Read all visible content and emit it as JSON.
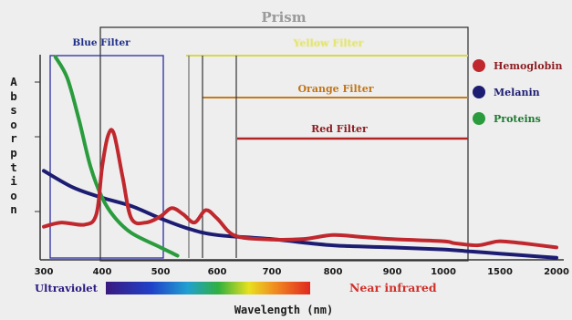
{
  "chart_data": {
    "type": "line",
    "title": "Prism",
    "xlabel": "Wavelength (nm)",
    "ylabel": "Absorption",
    "x_ticks": [
      "300",
      "400",
      "500",
      "600",
      "700",
      "800",
      "900",
      "1000",
      "1500",
      "2000"
    ],
    "spectrum_labels": {
      "left": "Ultraviolet",
      "right": "Near infrared"
    },
    "filters": [
      {
        "name": "Blue Filter",
        "range_nm": [
          300,
          500
        ],
        "color": "#2b2ba0"
      },
      {
        "name": "Yellow Filter",
        "range_nm": [
          550,
          1250
        ],
        "color": "#d8d84a"
      },
      {
        "name": "Orange Filter",
        "range_nm": [
          575,
          1250
        ],
        "color": "#c77a1a"
      },
      {
        "name": "Red Filter",
        "range_nm": [
          630,
          1250
        ],
        "color": "#b22424"
      }
    ],
    "prism_range_nm": [
      400,
      1250
    ],
    "series": [
      {
        "name": "Hemoglobin",
        "color": "#c0282e",
        "x": [
          300,
          330,
          370,
          390,
          400,
          410,
          420,
          435,
          450,
          475,
          500,
          520,
          540,
          560,
          580,
          600,
          630,
          680,
          750,
          800,
          850,
          900,
          1000,
          1100,
          1300,
          1400,
          1500,
          1700,
          2000
        ],
        "y": [
          0.16,
          0.18,
          0.17,
          0.22,
          0.45,
          0.6,
          0.61,
          0.4,
          0.2,
          0.18,
          0.21,
          0.25,
          0.22,
          0.18,
          0.24,
          0.2,
          0.12,
          0.1,
          0.1,
          0.12,
          0.11,
          0.1,
          0.09,
          0.08,
          0.07,
          0.08,
          0.09,
          0.08,
          0.06
        ]
      },
      {
        "name": "Melanin",
        "color": "#1c1c72",
        "x": [
          300,
          350,
          400,
          450,
          500,
          550,
          600,
          700,
          800,
          900,
          1000,
          1250,
          1500,
          1750,
          2000
        ],
        "y": [
          0.43,
          0.35,
          0.3,
          0.26,
          0.2,
          0.15,
          0.12,
          0.1,
          0.07,
          0.06,
          0.05,
          0.04,
          0.03,
          0.02,
          0.01
        ]
      },
      {
        "name": "Proteins",
        "color": "#2a9c3e",
        "x": [
          320,
          340,
          360,
          380,
          400,
          420,
          450,
          500,
          530
        ],
        "y": [
          0.98,
          0.88,
          0.68,
          0.45,
          0.3,
          0.21,
          0.13,
          0.06,
          0.02
        ]
      }
    ],
    "legend_position": "right",
    "grid": false
  }
}
